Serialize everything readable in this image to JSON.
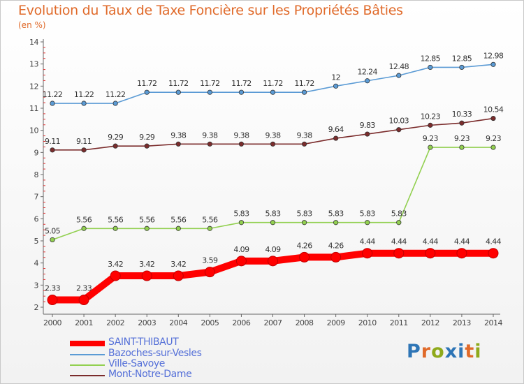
{
  "title": "Evolution du Taux de Taxe Foncière sur les Propriétés Bâties",
  "unit_label": "(en %)",
  "logo": {
    "text": "Proxiti"
  },
  "chart_data": {
    "type": "line",
    "title": "Evolution du Taux de Taxe Foncière sur les Propriétés Bâties",
    "ylabel": "(en %)",
    "xlabel": "",
    "x": [
      "2000",
      "2001",
      "2002",
      "2003",
      "2004",
      "2005",
      "2006",
      "2007",
      "2008",
      "2009",
      "2010",
      "2011",
      "2012",
      "2013",
      "2014"
    ],
    "ylim": [
      2,
      14
    ],
    "yticks": [
      "2",
      "3",
      "4",
      "5",
      "6",
      "7",
      "8",
      "9",
      "10",
      "11",
      "12",
      "13",
      "14"
    ],
    "grid": false,
    "legend_position": "bottom-left",
    "series": [
      {
        "name": "SAINT-THIBAUT",
        "color": "#ff0000",
        "style": "thick",
        "values": [
          2.33,
          2.33,
          3.42,
          3.42,
          3.42,
          3.59,
          4.09,
          4.09,
          4.26,
          4.26,
          4.44,
          4.44,
          4.44,
          4.44,
          4.44
        ],
        "labels": [
          "2.33",
          "2.33",
          "3.42",
          "3.42",
          "3.42",
          "3.59",
          "4.09",
          "4.09",
          "4.26",
          "4.26",
          "4.44",
          "4.44",
          "4.44",
          "4.44",
          "4.44"
        ]
      },
      {
        "name": "Bazoches-sur-Vesles",
        "color": "#5b9bd5",
        "style": "thin",
        "values": [
          11.22,
          11.22,
          11.22,
          11.72,
          11.72,
          11.72,
          11.72,
          11.72,
          11.72,
          12,
          12.24,
          12.48,
          12.85,
          12.85,
          12.98
        ],
        "labels": [
          "11.22",
          "11.22",
          "11.22",
          "11.72",
          "11.72",
          "11.72",
          "11.72",
          "11.72",
          "11.72",
          "12",
          "12.24",
          "12.48",
          "12.85",
          "12.85",
          "12.98"
        ]
      },
      {
        "name": "Ville-Savoye",
        "color": "#92d050",
        "style": "thin",
        "values": [
          5.05,
          5.56,
          5.56,
          5.56,
          5.56,
          5.56,
          5.83,
          5.83,
          5.83,
          5.83,
          5.83,
          5.83,
          9.23,
          9.23,
          9.23
        ],
        "labels": [
          "5.05",
          "5.56",
          "5.56",
          "5.56",
          "5.56",
          "5.56",
          "5.83",
          "5.83",
          "5.83",
          "5.83",
          "5.83",
          "5.83",
          "9.23",
          "9.23",
          "9.23"
        ]
      },
      {
        "name": "Mont-Notre-Dame",
        "color": "#7b2c2c",
        "style": "thin",
        "values": [
          9.11,
          9.11,
          9.29,
          9.29,
          9.38,
          9.38,
          9.38,
          9.38,
          9.38,
          9.64,
          9.83,
          10.03,
          10.23,
          10.33,
          10.54
        ],
        "labels": [
          "9.11",
          "9.11",
          "9.29",
          "9.29",
          "9.38",
          "9.38",
          "9.38",
          "9.38",
          "9.38",
          "9.64",
          "9.83",
          "10.03",
          "10.23",
          "10.33",
          "10.54"
        ]
      }
    ]
  }
}
